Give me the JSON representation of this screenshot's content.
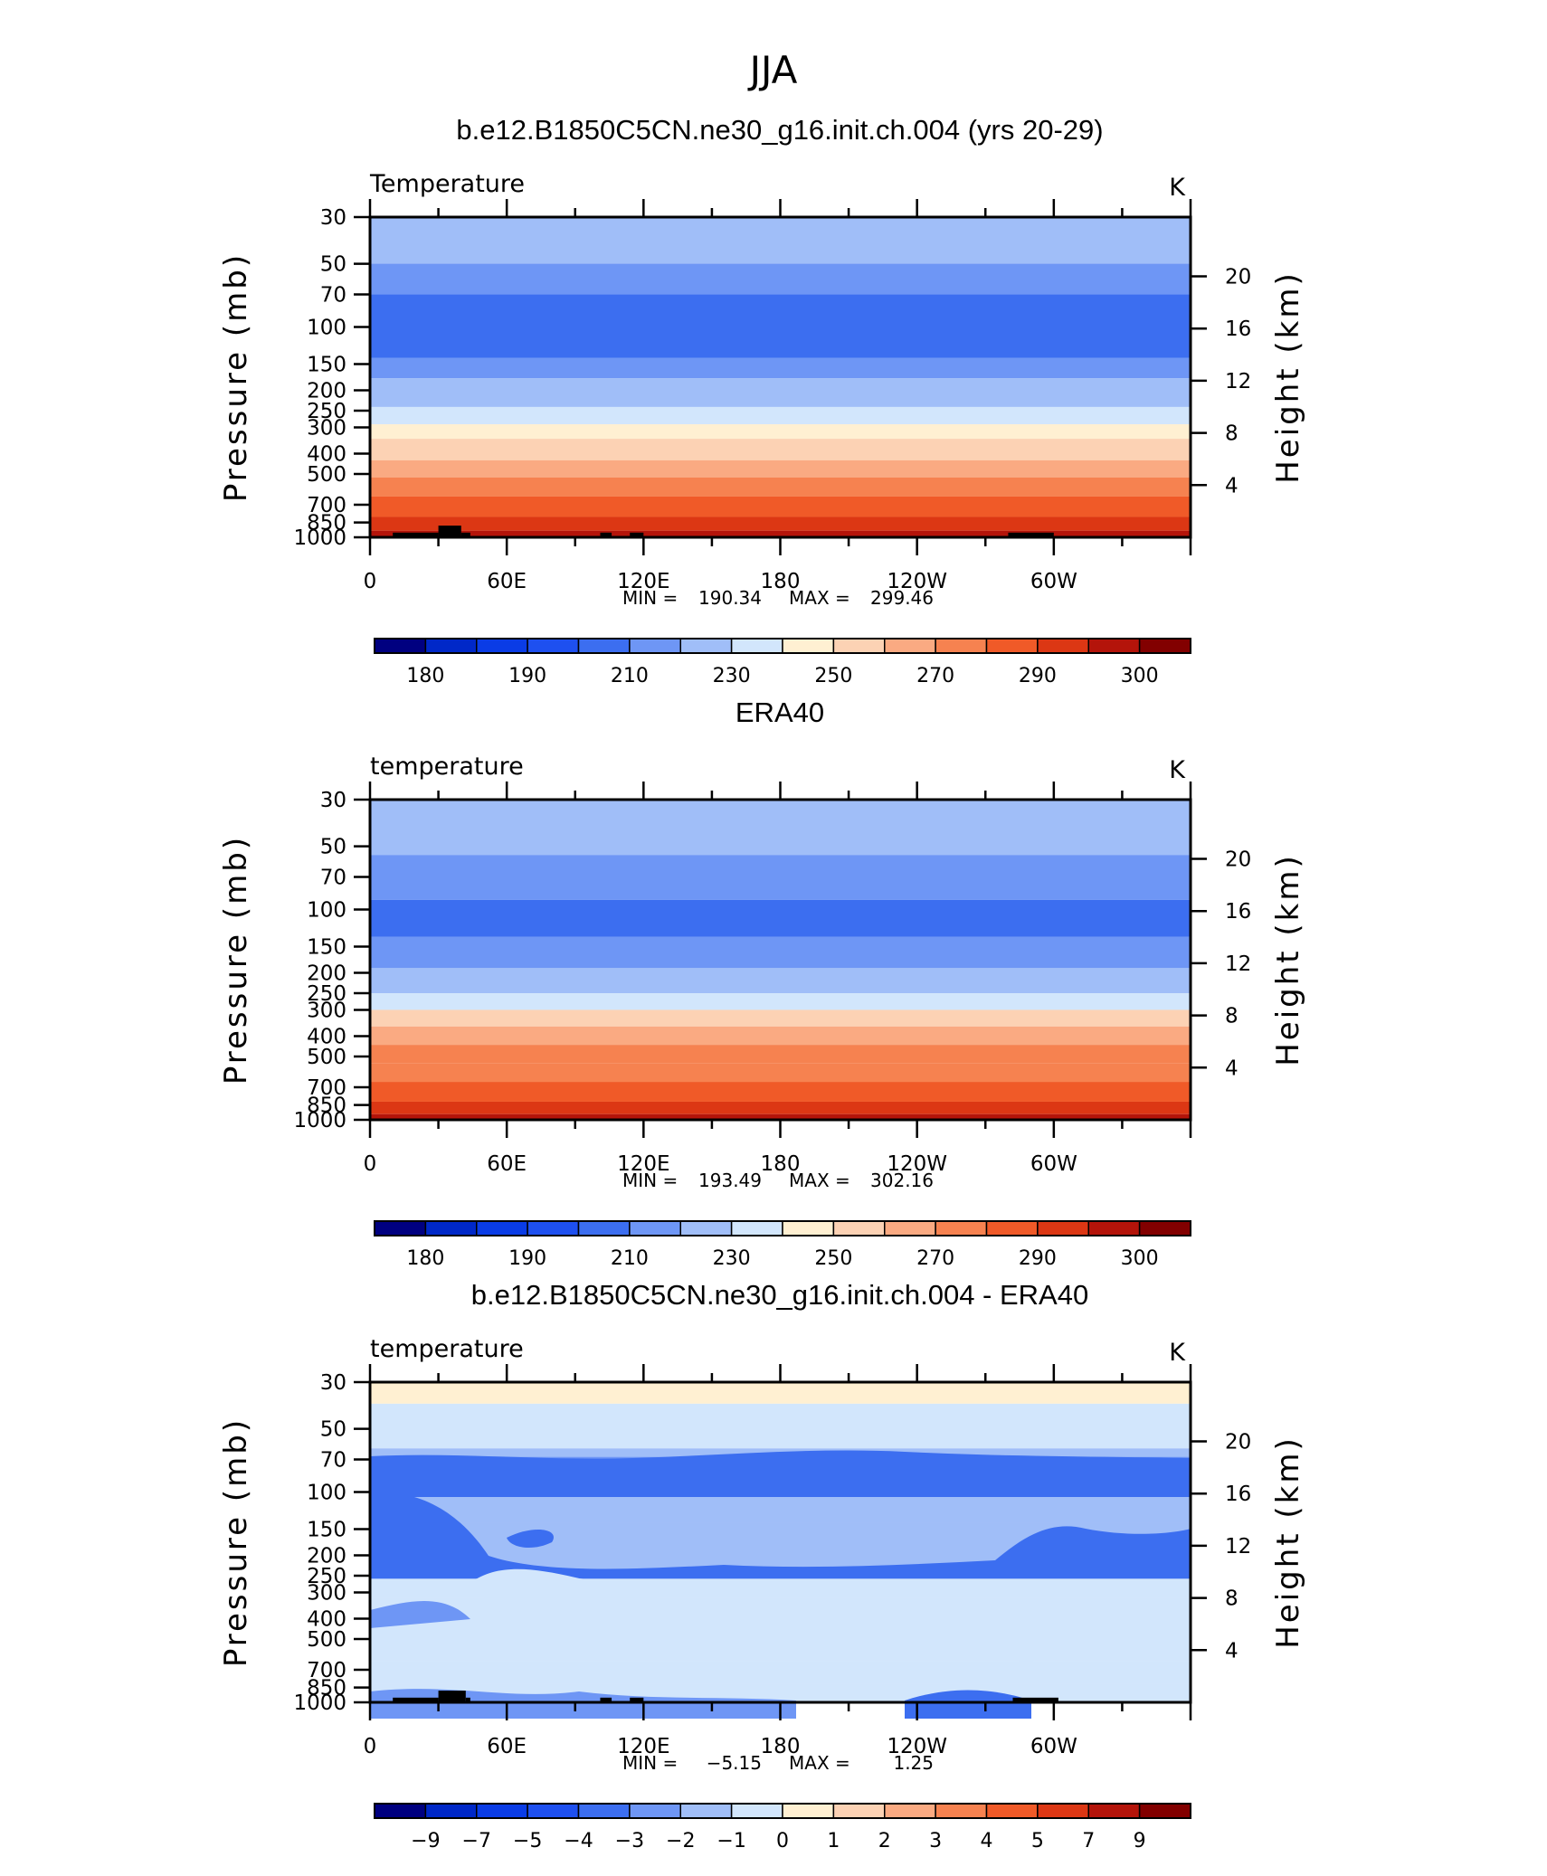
{
  "figure_title": "JJA",
  "chart_data": [
    {
      "type": "heatmap",
      "title": "b.e12.B1850C5CN.ne30_g16.init.ch.004 (yrs 20-29)",
      "left_label": "Temperature",
      "units": "K",
      "xlabel": "",
      "ylabel": "Pressure (mb)",
      "ylabel_right": "Height (km)",
      "x_ticks": [
        "0",
        "60E",
        "120E",
        "180",
        "120W",
        "60W"
      ],
      "y_ticks": [
        "30",
        "50",
        "70",
        "100",
        "150",
        "200",
        "250",
        "300",
        "400",
        "500",
        "700",
        "850",
        "1000"
      ],
      "y_ticks_right": [
        "20",
        "16",
        "12",
        "8",
        "4"
      ],
      "stats": {
        "min_label": "MIN",
        "min": "190.34",
        "max_label": "MAX",
        "max": "299.46"
      },
      "colorbar_labels": [
        "180",
        "190",
        "210",
        "230",
        "250",
        "270",
        "290",
        "300"
      ],
      "colorbar_colors": [
        "#000080",
        "#0028c8",
        "#0a3ce6",
        "#1e50f0",
        "#3c6ef0",
        "#6e96f5",
        "#a0bef8",
        "#d2e6fc",
        "#fff0d2",
        "#fcd2b4",
        "#faaa82",
        "#f68250",
        "#f05a28",
        "#dc3714",
        "#b4140a",
        "#820000"
      ],
      "bands": [
        {
          "p": [
            30,
            50
          ],
          "value": 212
        },
        {
          "p": [
            50,
            70
          ],
          "value": 202
        },
        {
          "p": [
            70,
            140
          ],
          "value": 196
        },
        {
          "p": [
            140,
            175
          ],
          "value": 202
        },
        {
          "p": [
            175,
            240
          ],
          "value": 212
        },
        {
          "p": [
            240,
            290
          ],
          "value": 222
        },
        {
          "p": [
            290,
            340
          ],
          "value": 235
        },
        {
          "p": [
            340,
            430
          ],
          "value": 248
        },
        {
          "p": [
            430,
            520
          ],
          "value": 258
        },
        {
          "p": [
            520,
            640
          ],
          "value": 265
        },
        {
          "p": [
            640,
            800
          ],
          "value": 275
        },
        {
          "p": [
            800,
            930
          ],
          "value": 285
        },
        {
          "p": [
            930,
            1000
          ],
          "value": 292
        }
      ],
      "terrain": [
        [
          10,
          30,
          950
        ],
        [
          30,
          40,
          880
        ],
        [
          40,
          44,
          950
        ],
        [
          101,
          106,
          950
        ],
        [
          114,
          120,
          950
        ],
        [
          280,
          300,
          950
        ]
      ]
    },
    {
      "type": "heatmap",
      "title": "ERA40",
      "left_label": "temperature",
      "units": "K",
      "xlabel": "",
      "ylabel": "Pressure (mb)",
      "ylabel_right": "Height (km)",
      "x_ticks": [
        "0",
        "60E",
        "120E",
        "180",
        "120W",
        "60W"
      ],
      "y_ticks": [
        "30",
        "50",
        "70",
        "100",
        "150",
        "200",
        "250",
        "300",
        "400",
        "500",
        "700",
        "850",
        "1000"
      ],
      "y_ticks_right": [
        "20",
        "16",
        "12",
        "8",
        "4"
      ],
      "stats": {
        "min_label": "MIN",
        "min": "193.49",
        "max_label": "MAX",
        "max": "302.16"
      },
      "colorbar_labels": [
        "180",
        "190",
        "210",
        "230",
        "250",
        "270",
        "290",
        "300"
      ],
      "colorbar_colors": [
        "#000080",
        "#0028c8",
        "#0a3ce6",
        "#1e50f0",
        "#3c6ef0",
        "#6e96f5",
        "#a0bef8",
        "#d2e6fc",
        "#fff0d2",
        "#fcd2b4",
        "#faaa82",
        "#f68250",
        "#f05a28",
        "#dc3714",
        "#b4140a",
        "#820000"
      ],
      "bands": [
        {
          "p": [
            30,
            55
          ],
          "value": 212
        },
        {
          "p": [
            55,
            90
          ],
          "value": 203
        },
        {
          "p": [
            90,
            135
          ],
          "value": 198
        },
        {
          "p": [
            135,
            190
          ],
          "value": 205
        },
        {
          "p": [
            190,
            250
          ],
          "value": 215
        },
        {
          "p": [
            250,
            300
          ],
          "value": 225
        },
        {
          "p": [
            300,
            360
          ],
          "value": 242
        },
        {
          "p": [
            360,
            440
          ],
          "value": 252
        },
        {
          "p": [
            440,
            540
          ],
          "value": 260
        },
        {
          "p": [
            540,
            660
          ],
          "value": 268
        },
        {
          "p": [
            660,
            820
          ],
          "value": 278
        },
        {
          "p": [
            820,
            940
          ],
          "value": 288
        },
        {
          "p": [
            940,
            1000
          ],
          "value": 294
        }
      ],
      "terrain": []
    },
    {
      "type": "heatmap",
      "title": "b.e12.B1850C5CN.ne30_g16.init.ch.004 - ERA40",
      "left_label": "temperature",
      "units": "K",
      "xlabel": "",
      "ylabel": "Pressure (mb)",
      "ylabel_right": "Height (km)",
      "x_ticks": [
        "0",
        "60E",
        "120E",
        "180",
        "120W",
        "60W"
      ],
      "y_ticks": [
        "30",
        "50",
        "70",
        "100",
        "150",
        "200",
        "250",
        "300",
        "400",
        "500",
        "700",
        "850",
        "1000"
      ],
      "y_ticks_right": [
        "20",
        "16",
        "12",
        "8",
        "4"
      ],
      "stats": {
        "min_label": "MIN",
        "min": "−5.15",
        "max_label": "MAX",
        "max": "1.25"
      },
      "colorbar_labels": [
        "−9",
        "−7",
        "−5",
        "−4",
        "−3",
        "−2",
        "−1",
        "0",
        "1",
        "2",
        "3",
        "4",
        "5",
        "7",
        "9"
      ],
      "colorbar_colors": [
        "#000080",
        "#0028c8",
        "#0a3ce6",
        "#1e50f0",
        "#3c6ef0",
        "#6e96f5",
        "#a0bef8",
        "#d2e6fc",
        "#fff0d2",
        "#fcd2b4",
        "#faaa82",
        "#f68250",
        "#f05a28",
        "#dc3714",
        "#b4140a",
        "#820000"
      ],
      "bands": [
        {
          "p": [
            30,
            38
          ],
          "value": -0.5
        },
        {
          "p": [
            38,
            62
          ],
          "value": -1.5
        },
        {
          "p": [
            62,
            68
          ],
          "value": -2.5
        },
        {
          "p": [
            68,
            100
          ],
          "value": -3.5
        },
        {
          "p": [
            100,
            140
          ],
          "value": -2.5
        },
        {
          "p": [
            140,
            260
          ],
          "value": -2.5
        },
        {
          "p": [
            260,
            320
          ],
          "value": -1.5
        },
        {
          "p": [
            320,
            640
          ],
          "value": -1.5
        },
        {
          "p": [
            640,
            820
          ],
          "value": -1.5
        },
        {
          "p": [
            820,
            1000
          ],
          "value": -1.5
        }
      ],
      "terrain": [
        [
          10,
          30,
          950
        ],
        [
          30,
          42,
          880
        ],
        [
          42,
          44,
          950
        ],
        [
          101,
          106,
          950
        ],
        [
          114,
          120,
          950
        ],
        [
          282,
          302,
          950
        ]
      ]
    }
  ]
}
